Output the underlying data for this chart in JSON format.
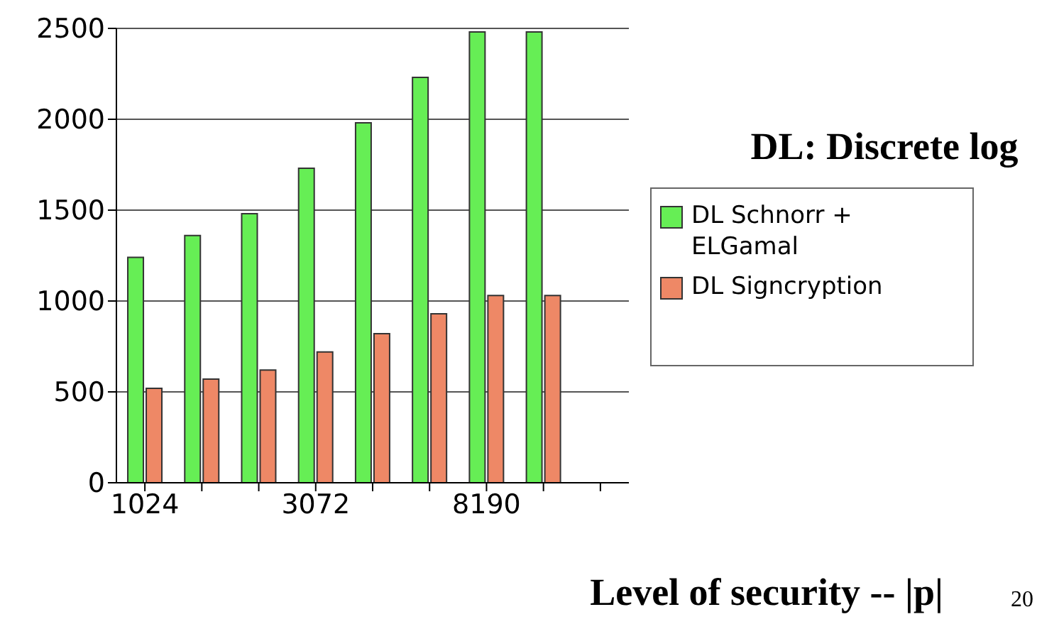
{
  "chart_data": {
    "type": "bar",
    "title": "DL: Discrete log",
    "xlabel": "Level of security -- |p|",
    "annotations": [
      "20"
    ],
    "categories": [
      "1024",
      null,
      null,
      "3072",
      null,
      null,
      "8190",
      null,
      null
    ],
    "series": [
      {
        "name": "DL Schnorr + ELGamal",
        "color": "#66ee55",
        "values": [
          1240,
          1360,
          1480,
          1730,
          1980,
          2230,
          2480,
          2480,
          null
        ]
      },
      {
        "name": "DL Signcryption",
        "color": "#ee8866",
        "values": [
          520,
          570,
          620,
          720,
          820,
          930,
          1030,
          1030,
          null
        ]
      }
    ],
    "ylim": [
      0,
      2500
    ],
    "yticks": [
      0,
      500,
      1000,
      1500,
      2000,
      2500
    ],
    "grid": "y",
    "legend": "right"
  }
}
